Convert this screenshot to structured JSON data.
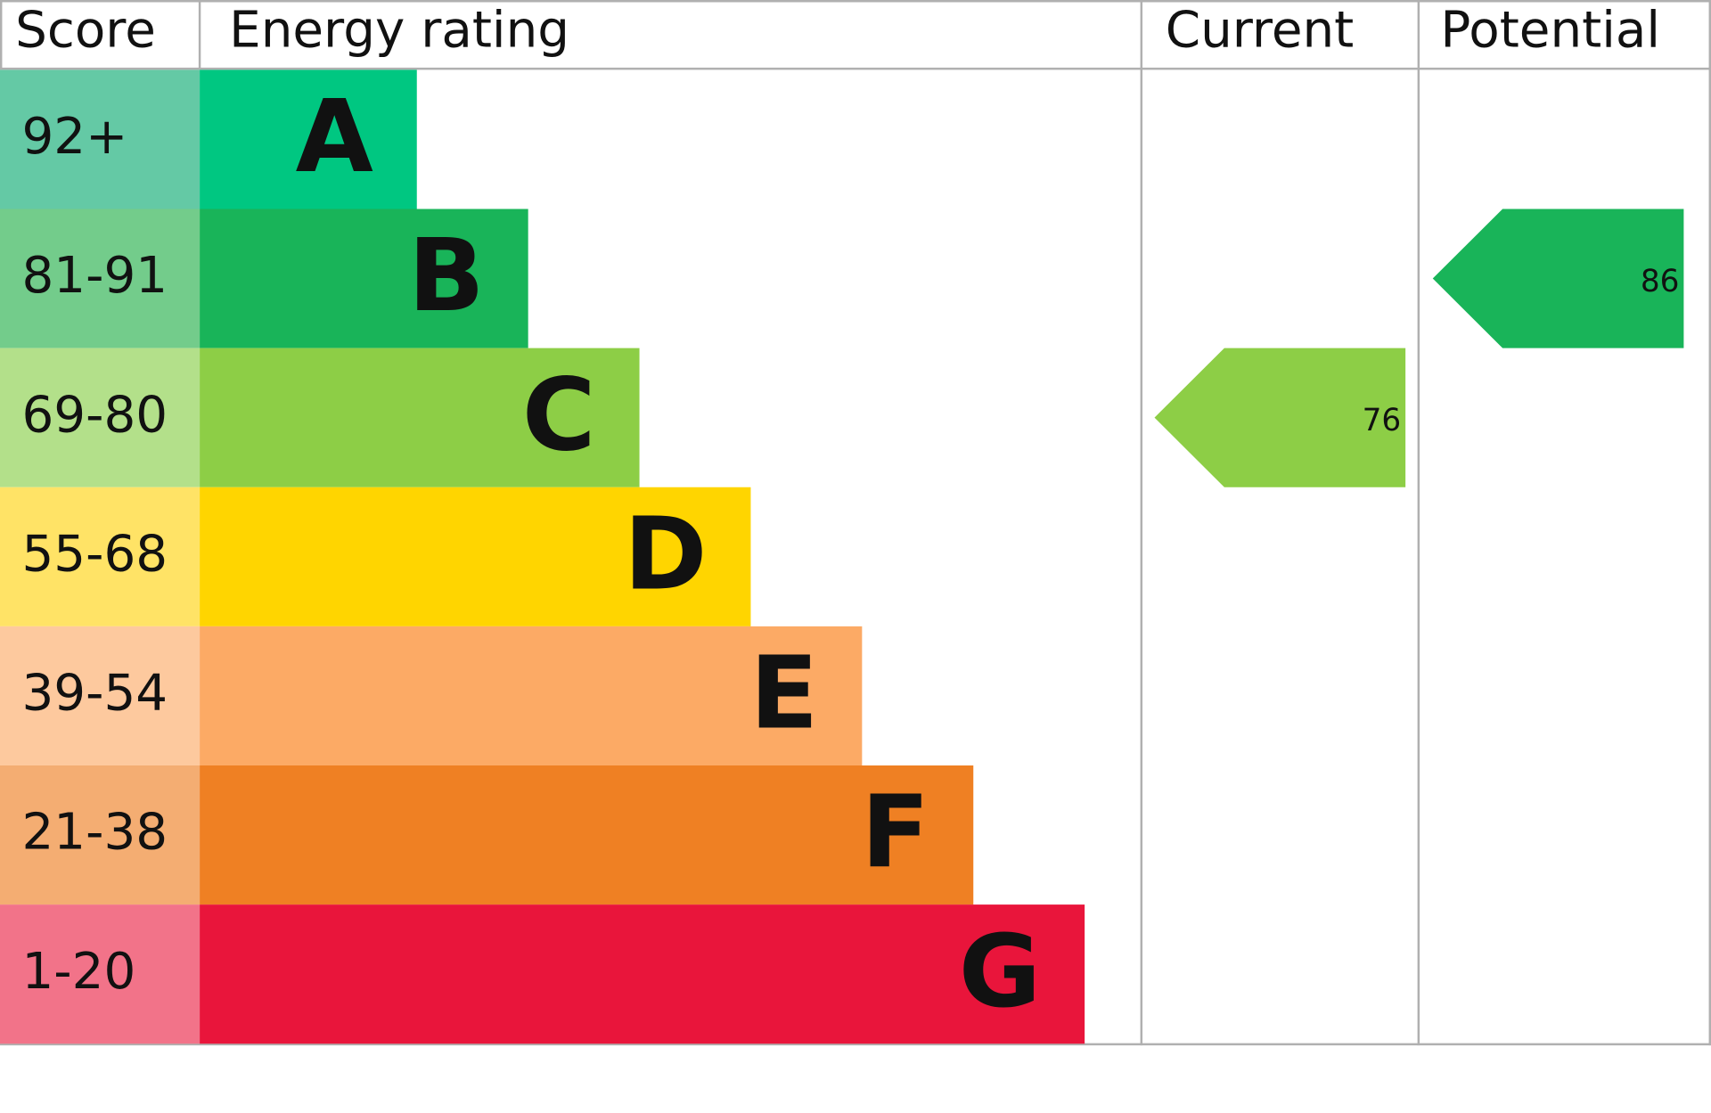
{
  "header": {
    "score": "Score",
    "rating": "Energy rating",
    "current": "Current",
    "potential": "Potential"
  },
  "bands": [
    {
      "score": "92+",
      "letter": "A",
      "color": "#00c781",
      "score_color": "#64c9a5"
    },
    {
      "score": "81-91",
      "letter": "B",
      "color": "#19b459",
      "score_color": "#73cc8b"
    },
    {
      "score": "69-80",
      "letter": "C",
      "color": "#8dce46",
      "score_color": "#b3e08a"
    },
    {
      "score": "55-68",
      "letter": "D",
      "color": "#ffd500",
      "score_color": "#ffe366"
    },
    {
      "score": "39-54",
      "letter": "E",
      "color": "#fcaa65",
      "score_color": "#fdc99e"
    },
    {
      "score": "21-38",
      "letter": "F",
      "color": "#ef8023",
      "score_color": "#f4ad72"
    },
    {
      "score": "1-20",
      "letter": "G",
      "color": "#e9153b",
      "score_color": "#f27389"
    }
  ],
  "current": 76,
  "potential": 86
}
